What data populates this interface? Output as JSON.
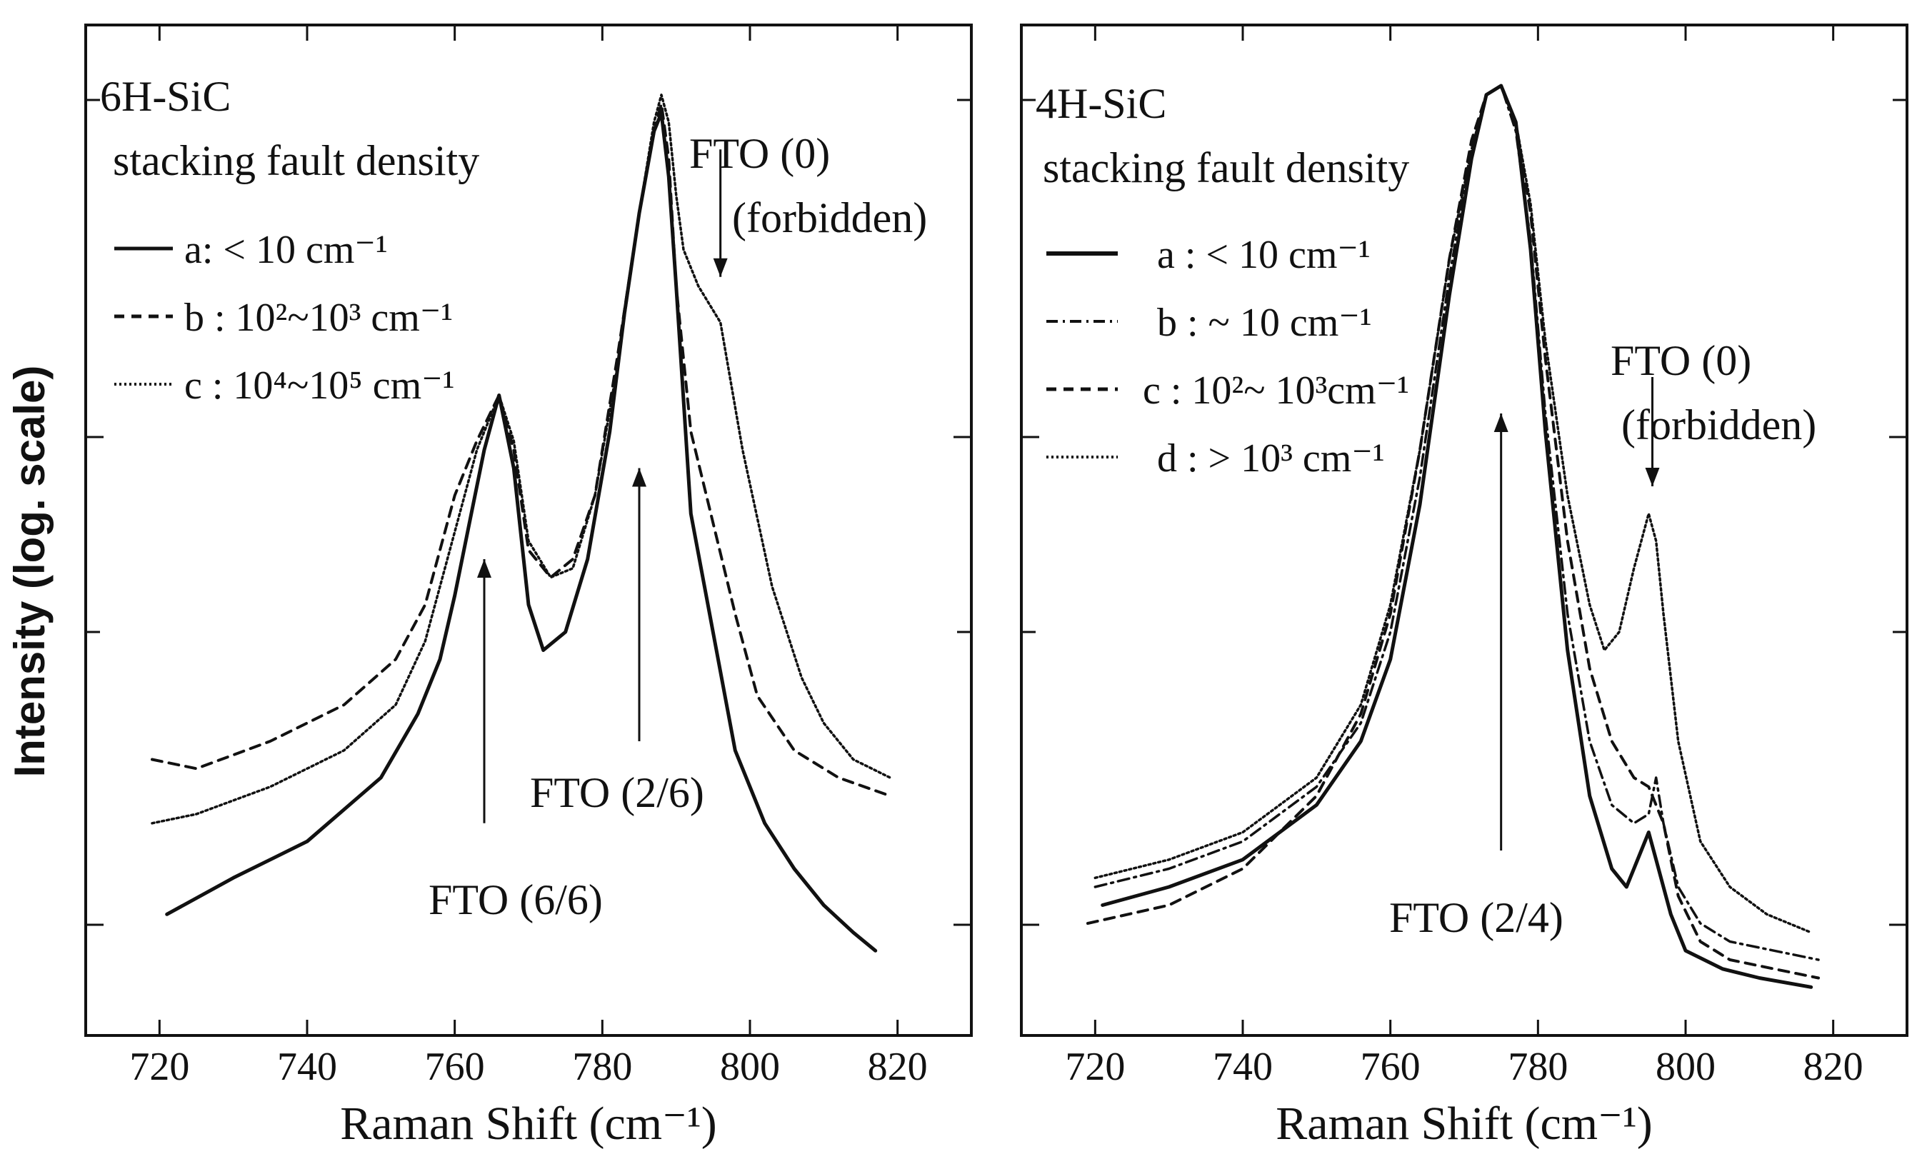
{
  "figure": {
    "ylabel": "Intensity (log. scale)"
  },
  "chart_data": [
    {
      "type": "line",
      "title": "6H-SiC",
      "subtitle": "stacking fault density",
      "xlabel": "Raman Shift (cm⁻¹)",
      "xlim": [
        710,
        830
      ],
      "x_ticks": [
        "720",
        "740",
        "760",
        "780",
        "800",
        "820"
      ],
      "x_tick_values": [
        720,
        740,
        760,
        780,
        800,
        820
      ],
      "ylim": [
        0,
        1
      ],
      "legend": [
        {
          "label": "a:  < 10 cm⁻¹",
          "style": "solid"
        },
        {
          "label": "b : 10²~10³ cm⁻¹",
          "style": "dashed"
        },
        {
          "label": "c : 10⁴~10⁵ cm⁻¹",
          "style": "dotted"
        }
      ],
      "series": [
        {
          "name": "a",
          "style": "solid",
          "x": [
            721,
            730,
            740,
            750,
            755,
            758,
            760,
            762,
            764,
            766,
            768,
            770,
            772,
            775,
            778,
            781,
            783,
            785,
            787,
            788,
            789,
            790,
            792,
            795,
            798,
            802,
            806,
            810,
            814,
            817
          ],
          "y": [
            0.09,
            0.13,
            0.17,
            0.24,
            0.31,
            0.37,
            0.44,
            0.52,
            0.6,
            0.66,
            0.58,
            0.43,
            0.38,
            0.4,
            0.48,
            0.62,
            0.75,
            0.86,
            0.95,
            0.97,
            0.9,
            0.78,
            0.53,
            0.4,
            0.27,
            0.19,
            0.14,
            0.1,
            0.07,
            0.05
          ]
        },
        {
          "name": "b",
          "style": "dashed",
          "x": [
            719,
            725,
            735,
            745,
            752,
            756,
            760,
            763,
            766,
            768,
            770,
            773,
            776,
            779,
            782,
            785,
            787,
            788,
            789,
            790,
            792,
            795,
            798,
            801,
            806,
            812,
            819
          ],
          "y": [
            0.26,
            0.25,
            0.28,
            0.32,
            0.37,
            0.43,
            0.55,
            0.61,
            0.66,
            0.6,
            0.49,
            0.46,
            0.48,
            0.55,
            0.7,
            0.86,
            0.95,
            0.98,
            0.92,
            0.78,
            0.62,
            0.52,
            0.42,
            0.33,
            0.27,
            0.24,
            0.22
          ]
        },
        {
          "name": "c",
          "style": "dotted",
          "x": [
            719,
            725,
            735,
            745,
            752,
            756,
            760,
            763,
            766,
            768,
            770,
            773,
            776,
            779,
            782,
            785,
            787,
            788,
            789,
            790,
            791,
            793,
            796,
            799,
            803,
            807,
            810,
            814,
            819
          ],
          "y": [
            0.19,
            0.2,
            0.23,
            0.27,
            0.32,
            0.39,
            0.51,
            0.6,
            0.66,
            0.61,
            0.5,
            0.46,
            0.47,
            0.55,
            0.69,
            0.86,
            0.96,
            0.99,
            0.96,
            0.88,
            0.82,
            0.78,
            0.74,
            0.6,
            0.45,
            0.35,
            0.3,
            0.26,
            0.24
          ]
        }
      ],
      "annotations": [
        {
          "text": "FTO (0)",
          "x": 796,
          "arrow_from": 0.93,
          "arrow_to": 0.79
        },
        {
          "text": "(forbidden)",
          "x": 796
        },
        {
          "text": "FTO (2/6)",
          "x": 785,
          "arrow_from": 0.28,
          "arrow_to": 0.58
        },
        {
          "text": "FTO (6/6)",
          "x": 764,
          "arrow_from": 0.19,
          "arrow_to": 0.48
        }
      ],
      "annotation_labels": {
        "fto0": "FTO (0)",
        "forbidden": "(forbidden)",
        "fto26": "FTO (2/6)",
        "fto66": "FTO (6/6)"
      }
    },
    {
      "type": "line",
      "title": "4H-SiC",
      "subtitle": "stacking fault density",
      "xlabel": "Raman Shift (cm⁻¹)",
      "xlim": [
        710,
        830
      ],
      "x_ticks": [
        "720",
        "740",
        "760",
        "780",
        "800",
        "820"
      ],
      "x_tick_values": [
        720,
        740,
        760,
        780,
        800,
        820
      ],
      "ylim": [
        0,
        1
      ],
      "legend": [
        {
          "label": "a :  < 10 cm⁻¹",
          "style": "solid"
        },
        {
          "label": "b :  ~ 10 cm⁻¹",
          "style": "dashdot"
        },
        {
          "label": "c : 10²~ 10³cm⁻¹",
          "style": "dashed"
        },
        {
          "label": "d : > 10³ cm⁻¹",
          "style": "dotted"
        }
      ],
      "series": [
        {
          "name": "a",
          "style": "solid",
          "x": [
            721,
            730,
            740,
            750,
            756,
            760,
            764,
            768,
            771,
            773,
            775,
            777,
            779,
            781,
            784,
            787,
            790,
            792,
            794,
            795,
            796,
            798,
            800,
            805,
            810,
            817
          ],
          "y": [
            0.1,
            0.12,
            0.15,
            0.21,
            0.28,
            0.37,
            0.54,
            0.77,
            0.92,
            0.99,
            1.0,
            0.96,
            0.82,
            0.62,
            0.38,
            0.22,
            0.14,
            0.12,
            0.16,
            0.18,
            0.15,
            0.09,
            0.05,
            0.03,
            0.02,
            0.01
          ]
        },
        {
          "name": "b",
          "style": "dashdot",
          "x": [
            720,
            730,
            740,
            750,
            756,
            760,
            764,
            768,
            771,
            773,
            775,
            777,
            779,
            781,
            784,
            787,
            790,
            793,
            795,
            796,
            797,
            799,
            802,
            806,
            812,
            818
          ],
          "y": [
            0.12,
            0.14,
            0.17,
            0.23,
            0.3,
            0.4,
            0.57,
            0.79,
            0.93,
            0.99,
            1.0,
            0.95,
            0.83,
            0.64,
            0.42,
            0.28,
            0.21,
            0.19,
            0.2,
            0.24,
            0.19,
            0.12,
            0.08,
            0.06,
            0.05,
            0.04
          ]
        },
        {
          "name": "c",
          "style": "dashed",
          "x": [
            719,
            730,
            740,
            750,
            756,
            760,
            764,
            768,
            771,
            773,
            775,
            777,
            779,
            781,
            784,
            787,
            790,
            793,
            795,
            797,
            799,
            802,
            806,
            812,
            818
          ],
          "y": [
            0.08,
            0.1,
            0.14,
            0.22,
            0.31,
            0.42,
            0.6,
            0.81,
            0.94,
            0.99,
            1.0,
            0.96,
            0.86,
            0.7,
            0.5,
            0.36,
            0.28,
            0.24,
            0.23,
            0.19,
            0.11,
            0.06,
            0.04,
            0.03,
            0.02
          ]
        },
        {
          "name": "d",
          "style": "dotted",
          "x": [
            720,
            730,
            740,
            750,
            756,
            760,
            764,
            768,
            771,
            773,
            775,
            777,
            779,
            781,
            784,
            787,
            789,
            791,
            793,
            795,
            796,
            797,
            799,
            802,
            806,
            811,
            817
          ],
          "y": [
            0.13,
            0.15,
            0.18,
            0.24,
            0.32,
            0.43,
            0.6,
            0.81,
            0.93,
            0.99,
            1.0,
            0.96,
            0.87,
            0.72,
            0.55,
            0.43,
            0.38,
            0.4,
            0.47,
            0.53,
            0.5,
            0.42,
            0.28,
            0.17,
            0.12,
            0.09,
            0.07
          ]
        }
      ],
      "annotations": [
        {
          "text": "FTO (0)",
          "x": 795.5,
          "arrow_from": 0.68,
          "arrow_to": 0.56
        },
        {
          "text": "(forbidden)",
          "x": 795.5
        },
        {
          "text": "FTO (2/4)",
          "x": 775,
          "arrow_from": 0.16,
          "arrow_to": 0.64
        }
      ],
      "annotation_labels": {
        "fto0": "FTO (0)",
        "forbidden": "(forbidden)",
        "fto24": "FTO (2/4)"
      }
    }
  ]
}
